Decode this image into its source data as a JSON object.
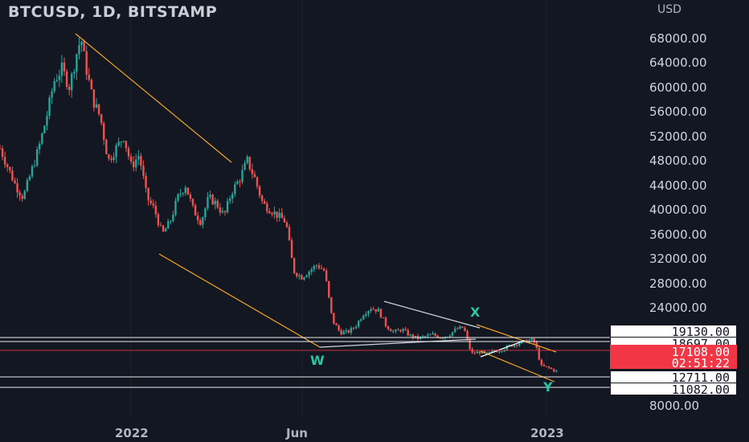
{
  "header": {
    "symbol_title": "BTCUSD, 1D, BITSTAMP",
    "currency": "USD"
  },
  "chart_data": {
    "type": "candlestick",
    "title": "BTCUSD, 1D, BITSTAMP",
    "ylabel": "USD",
    "ylim": [
      5000,
      72000
    ],
    "y_ticks": [
      "68000.00",
      "64000.00",
      "60000.00",
      "56000.00",
      "52000.00",
      "48000.00",
      "44000.00",
      "40000.00",
      "36000.00",
      "32000.00",
      "28000.00",
      "24000.00",
      "8000.00"
    ],
    "x_ticks": [
      "2022",
      "Jun",
      "2023"
    ],
    "price_labels": [
      {
        "value": "19130.00",
        "kind": "level"
      },
      {
        "value": "18697.00",
        "kind": "level"
      },
      {
        "value": "17108.00",
        "kind": "current"
      },
      {
        "value": "02:51:22",
        "kind": "countdown"
      },
      {
        "value": "12711.00",
        "kind": "level"
      },
      {
        "value": "11082.00",
        "kind": "level"
      }
    ],
    "wave_labels": [
      "W",
      "X",
      "Y"
    ],
    "price_path": [
      [
        0,
        50000
      ],
      [
        0.02,
        44000
      ],
      [
        0.03,
        42000
      ],
      [
        0.05,
        50000
      ],
      [
        0.06,
        55000
      ],
      [
        0.07,
        61000
      ],
      [
        0.08,
        63000
      ],
      [
        0.09,
        60000
      ],
      [
        0.1,
        66000
      ],
      [
        0.105,
        68000
      ],
      [
        0.11,
        64000
      ],
      [
        0.12,
        58000
      ],
      [
        0.13,
        55000
      ],
      [
        0.14,
        48000
      ],
      [
        0.15,
        50000
      ],
      [
        0.16,
        52000
      ],
      [
        0.17,
        47000
      ],
      [
        0.18,
        49000
      ],
      [
        0.19,
        42000
      ],
      [
        0.2,
        40000
      ],
      [
        0.21,
        36000
      ],
      [
        0.22,
        38000
      ],
      [
        0.23,
        42000
      ],
      [
        0.24,
        44000
      ],
      [
        0.25,
        40000
      ],
      [
        0.26,
        38000
      ],
      [
        0.27,
        42000
      ],
      [
        0.28,
        41000
      ],
      [
        0.29,
        39000
      ],
      [
        0.3,
        43000
      ],
      [
        0.31,
        45000
      ],
      [
        0.32,
        48000
      ],
      [
        0.33,
        45000
      ],
      [
        0.34,
        41000
      ],
      [
        0.35,
        40000
      ],
      [
        0.36,
        39000
      ],
      [
        0.37,
        38000
      ],
      [
        0.38,
        30000
      ],
      [
        0.39,
        29000
      ],
      [
        0.4,
        30000
      ],
      [
        0.41,
        31000
      ],
      [
        0.42,
        30000
      ],
      [
        0.43,
        22000
      ],
      [
        0.44,
        20000
      ],
      [
        0.45,
        20000
      ],
      [
        0.46,
        21000
      ],
      [
        0.47,
        23000
      ],
      [
        0.48,
        24000
      ],
      [
        0.49,
        23500
      ],
      [
        0.5,
        21000
      ],
      [
        0.51,
        20000
      ],
      [
        0.52,
        20500
      ],
      [
        0.53,
        19500
      ],
      [
        0.54,
        19000
      ],
      [
        0.55,
        19300
      ],
      [
        0.56,
        19600
      ],
      [
        0.57,
        19200
      ],
      [
        0.58,
        19500
      ],
      [
        0.59,
        20500
      ],
      [
        0.6,
        20800
      ],
      [
        0.61,
        16500
      ],
      [
        0.62,
        16800
      ],
      [
        0.63,
        16500
      ],
      [
        0.64,
        16900
      ],
      [
        0.65,
        17200
      ],
      [
        0.66,
        17800
      ],
      [
        0.67,
        18200
      ],
      [
        0.68,
        18500
      ],
      [
        0.69,
        18800
      ],
      [
        0.695,
        17100
      ],
      [
        0.7,
        14500
      ],
      [
        0.71,
        14200
      ],
      [
        0.72,
        13600
      ]
    ],
    "colors": {
      "background": "#131722",
      "up": "#26a69a",
      "down": "#ef5350",
      "trendline_orange": "#f5a623",
      "trendline_white": "#d1d4dc",
      "current_price": "#f23645",
      "wave_label": "#26c6a6"
    }
  }
}
